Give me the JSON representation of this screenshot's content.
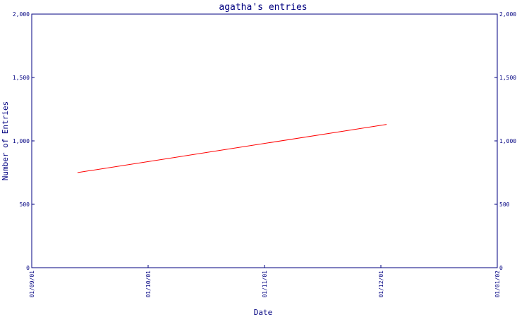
{
  "chart_data": {
    "type": "line",
    "title": "agatha's entries",
    "xlabel": "Date",
    "ylabel": "Number of Entries",
    "x_ticks": [
      "01/09/01",
      "01/10/01",
      "01/11/01",
      "01/12/01",
      "01/01/02"
    ],
    "y_ticks": [
      "0",
      "500",
      "1,000",
      "1,500",
      "2,000"
    ],
    "ylim": [
      0,
      2000
    ],
    "xlim": [
      "2001-09-01",
      "2002-01-01"
    ],
    "y_axis_both_sides": true,
    "grid": false,
    "series": [
      {
        "color": "#ff0000",
        "points": [
          {
            "x": "2001-09-13",
            "y": 750
          },
          {
            "x": "2001-12-03",
            "y": 1130
          }
        ]
      }
    ]
  }
}
